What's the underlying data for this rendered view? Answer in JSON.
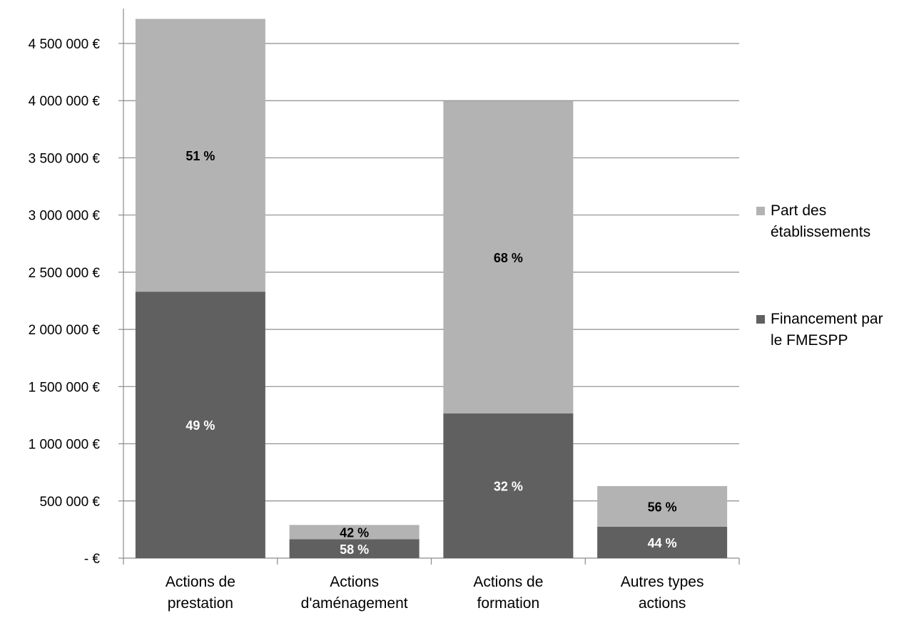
{
  "chart_data": {
    "type": "bar",
    "stacked": true,
    "categories": [
      [
        "Actions de",
        "prestation"
      ],
      [
        "Actions",
        "d'aménagement"
      ],
      [
        "Actions de",
        "formation"
      ],
      [
        "Autres types",
        "actions"
      ]
    ],
    "series": [
      {
        "name": "Financement par le FMESPP",
        "legend_lines": [
          "Financement par",
          "le FMESPP"
        ],
        "color": "#606060",
        "label_color": "#ffffff",
        "values": [
          2330000,
          165000,
          1265000,
          275000
        ],
        "labels": [
          "49 %",
          "58 %",
          "32 %",
          "44 %"
        ]
      },
      {
        "name": "Part des établissements",
        "legend_lines": [
          "Part des",
          "établissements"
        ],
        "color": "#b3b3b3",
        "label_color": "#000000",
        "values": [
          2385000,
          125000,
          2730000,
          355000
        ],
        "labels": [
          "51 %",
          "42 %",
          "68 %",
          "56 %"
        ]
      }
    ],
    "y_ticks": [
      {
        "value": 0,
        "label": "-   €"
      },
      {
        "value": 500000,
        "label": "500 000 €"
      },
      {
        "value": 1000000,
        "label": "1 000 000 €"
      },
      {
        "value": 1500000,
        "label": "1 500 000 €"
      },
      {
        "value": 2000000,
        "label": "2 000 000 €"
      },
      {
        "value": 2500000,
        "label": "2 500 000 €"
      },
      {
        "value": 3000000,
        "label": "3 000 000 €"
      },
      {
        "value": 3500000,
        "label": "3 500 000 €"
      },
      {
        "value": 4000000,
        "label": "4 000 000 €"
      },
      {
        "value": 4500000,
        "label": "4 500 000 €"
      }
    ],
    "ylim": [
      0,
      4800000
    ],
    "grid": true,
    "legend_position": "right",
    "title": "",
    "xlabel": "",
    "ylabel": ""
  }
}
